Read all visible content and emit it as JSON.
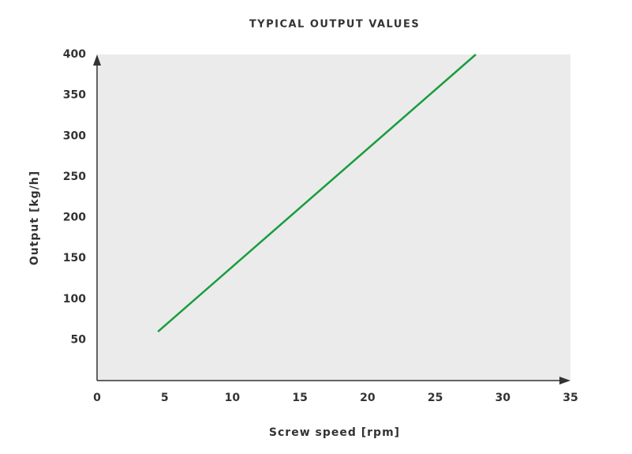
{
  "chart_data": {
    "type": "line",
    "title": "TYPICAL OUTPUT VALUES",
    "x_label": "Screw speed [rpm]",
    "y_label": "Output [kg/h]",
    "x": [
      4.5,
      28
    ],
    "series": [
      {
        "name": "Output",
        "color": "#1a9c3e",
        "values": [
          60,
          400
        ]
      }
    ],
    "xlim": [
      0,
      35
    ],
    "ylim": [
      0,
      400
    ],
    "xticks": [
      0,
      5,
      10,
      15,
      20,
      25,
      30,
      35
    ],
    "yticks": [
      50,
      100,
      150,
      200,
      250,
      300,
      350,
      400
    ],
    "background": "#ebebeb",
    "grid": false
  }
}
